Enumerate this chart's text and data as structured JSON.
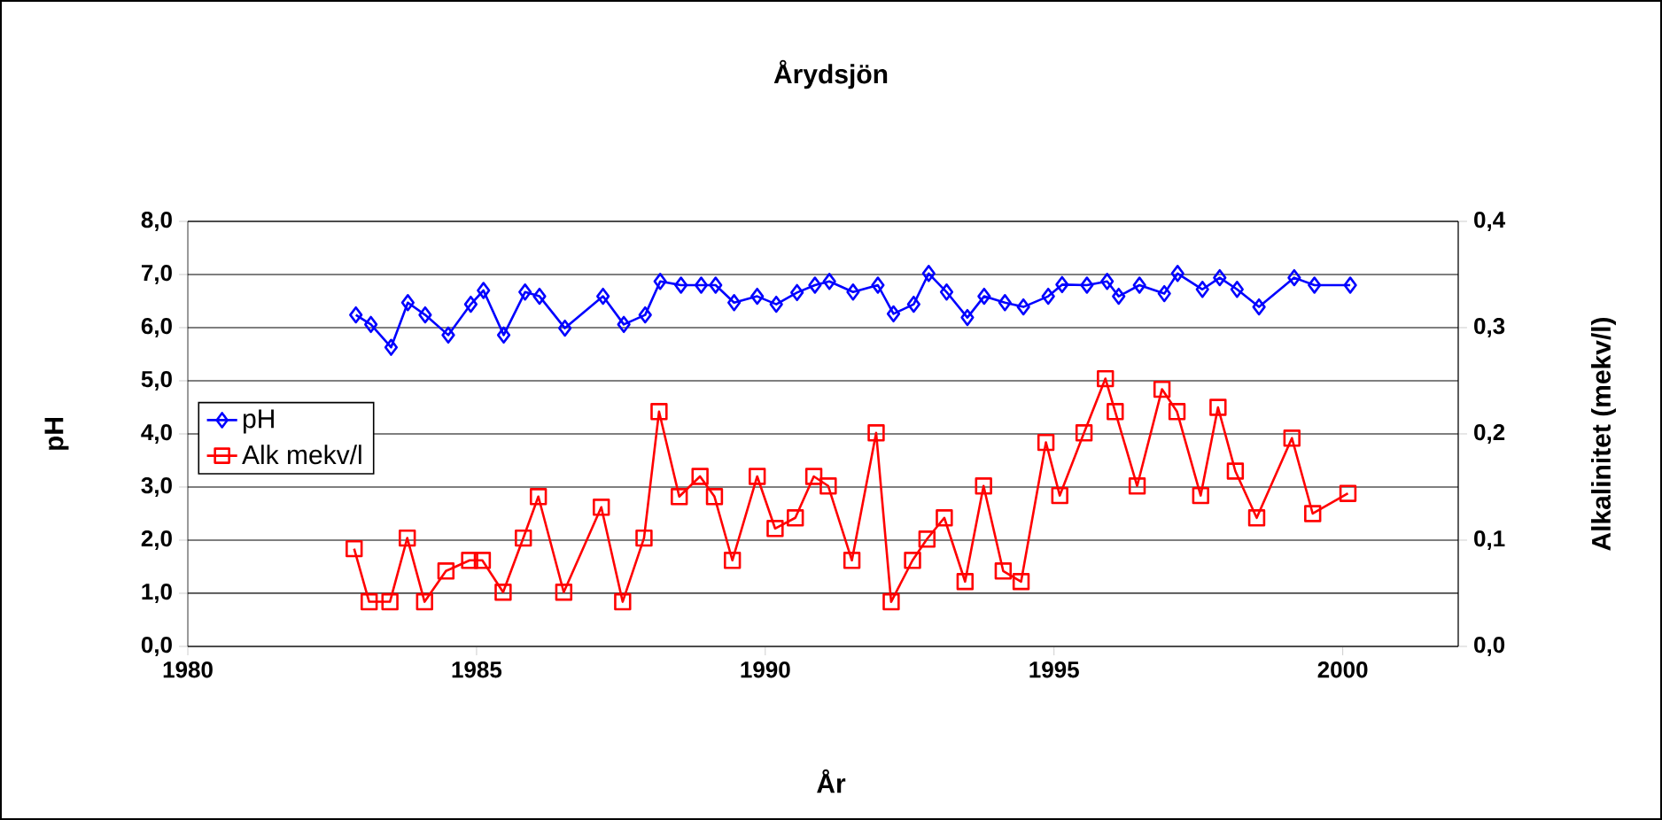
{
  "chart_data": {
    "type": "line",
    "title": "Årydsjön",
    "xlabel": "År",
    "ylabel": "pH",
    "y2label": "Alkalinitet (mekv/l)",
    "xlim": [
      1980,
      2002
    ],
    "xticks": [
      1980,
      1985,
      1990,
      1995,
      2000
    ],
    "ylim": [
      0,
      8
    ],
    "yticks": [
      {
        "value": 0,
        "label": "0,0"
      },
      {
        "value": 1,
        "label": "1,0"
      },
      {
        "value": 2,
        "label": "2,0"
      },
      {
        "value": 3,
        "label": "3,0"
      },
      {
        "value": 4,
        "label": "4,0"
      },
      {
        "value": 5,
        "label": "5,0"
      },
      {
        "value": 6,
        "label": "6,0"
      },
      {
        "value": 7,
        "label": "7,0"
      },
      {
        "value": 8,
        "label": "8,0"
      }
    ],
    "y2lim": [
      0,
      0.4
    ],
    "y2ticks": [
      {
        "value": 0,
        "label": "0,0"
      },
      {
        "value": 0.1,
        "label": "0,1"
      },
      {
        "value": 0.2,
        "label": "0,2"
      },
      {
        "value": 0.3,
        "label": "0,3"
      },
      {
        "value": 0.4,
        "label": "0,4"
      }
    ],
    "grid": "y",
    "legend": "left",
    "series": [
      {
        "name": "pH",
        "color": "#0000ff",
        "marker": "diamond",
        "x": [
          1982.91,
          1983.17,
          1983.52,
          1983.81,
          1984.11,
          1984.51,
          1984.9,
          1985.12,
          1985.47,
          1985.84,
          1986.09,
          1986.53,
          1987.19,
          1987.55,
          1987.92,
          1988.18,
          1988.54,
          1988.89,
          1989.14,
          1989.46,
          1989.86,
          1990.19,
          1990.55,
          1990.86,
          1991.11,
          1991.52,
          1991.95,
          1992.22,
          1992.57,
          1992.83,
          1993.14,
          1993.5,
          1993.79,
          1994.15,
          1994.47,
          1994.9,
          1995.14,
          1995.57,
          1995.92,
          1996.12,
          1996.48,
          1996.91,
          1997.14,
          1997.57,
          1997.87,
          1998.17,
          1998.55,
          1999.16,
          1999.51,
          2000.13
        ],
        "values": [
          6.24,
          6.06,
          5.63,
          6.47,
          6.24,
          5.86,
          6.44,
          6.7,
          5.86,
          6.67,
          6.59,
          5.99,
          6.59,
          6.06,
          6.24,
          6.87,
          6.8,
          6.8,
          6.8,
          6.47,
          6.59,
          6.44,
          6.66,
          6.8,
          6.87,
          6.67,
          6.8,
          6.26,
          6.44,
          7.02,
          6.67,
          6.19,
          6.59,
          6.47,
          6.39,
          6.59,
          6.81,
          6.8,
          6.87,
          6.59,
          6.8,
          6.64,
          7.02,
          6.72,
          6.94,
          6.72,
          6.39,
          6.94,
          6.8,
          6.8
        ]
      },
      {
        "name": "Alk mekv/l",
        "color": "#ff0000",
        "marker": "square",
        "axis": "y2",
        "x": [
          1982.88,
          1983.14,
          1983.5,
          1983.8,
          1984.1,
          1984.47,
          1984.88,
          1985.1,
          1985.46,
          1985.81,
          1986.07,
          1986.51,
          1987.16,
          1987.53,
          1987.9,
          1988.16,
          1988.51,
          1988.87,
          1989.12,
          1989.43,
          1989.86,
          1990.17,
          1990.52,
          1990.84,
          1991.09,
          1991.5,
          1991.92,
          1992.18,
          1992.55,
          1992.8,
          1993.1,
          1993.46,
          1993.78,
          1994.12,
          1994.43,
          1994.86,
          1995.1,
          1995.52,
          1995.89,
          1996.06,
          1996.44,
          1996.87,
          1997.13,
          1997.54,
          1997.84,
          1998.14,
          1998.51,
          1999.12,
          1999.48,
          2000.09
        ],
        "values": [
          0.092,
          0.042,
          0.042,
          0.102,
          0.042,
          0.071,
          0.081,
          0.081,
          0.051,
          0.102,
          0.141,
          0.051,
          0.131,
          0.042,
          0.102,
          0.221,
          0.141,
          0.16,
          0.141,
          0.081,
          0.16,
          0.111,
          0.121,
          0.16,
          0.151,
          0.081,
          0.201,
          0.042,
          0.081,
          0.101,
          0.121,
          0.061,
          0.151,
          0.071,
          0.061,
          0.192,
          0.142,
          0.201,
          0.252,
          0.221,
          0.151,
          0.242,
          0.221,
          0.142,
          0.225,
          0.165,
          0.121,
          0.196,
          0.125,
          0.144
        ]
      }
    ]
  }
}
